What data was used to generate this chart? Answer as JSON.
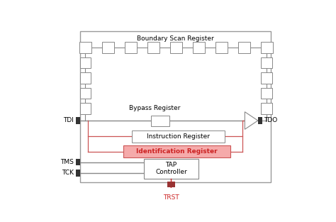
{
  "fig_width": 4.74,
  "fig_height": 3.13,
  "dpi": 100,
  "bg_color": "#ffffff",
  "boundary_scan_label": "Boundary Scan Register",
  "bypass_label": "Bypass Register",
  "instruction_label": "Instruction Register",
  "identification_label": "Identification Register",
  "tap_label": "TAP\nController",
  "tdi_label": "TDI",
  "tdo_label": "TDO",
  "tms_label": "TMS",
  "tck_label": "TCK",
  "trst_label": "TRST",
  "gray": "#888888",
  "light_gray": "#aaaaaa",
  "id_reg_fill": "#f5aaaa",
  "id_reg_edge": "#cc5555",
  "id_reg_text": "#cc2222",
  "red_line": "#cc5555",
  "black_fill": "#333333",
  "trst_color": "#cc2222",
  "trst_fill": "#993333"
}
